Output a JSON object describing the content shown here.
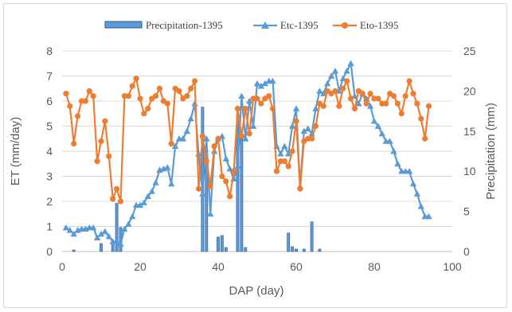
{
  "chart_data": {
    "type": "line",
    "title": "",
    "xlabel": "DAP (day)",
    "ylabel": "ET (mm/day)",
    "y2label": "Precipitation (mm)",
    "xlim": [
      0,
      100
    ],
    "ylim": [
      0,
      8
    ],
    "y2lim": [
      0,
      25
    ],
    "xticks": [
      "0",
      "20",
      "40",
      "60",
      "80",
      "100"
    ],
    "yticks": [
      "0",
      "1",
      "2",
      "3",
      "4",
      "5",
      "6",
      "7",
      "8"
    ],
    "y2ticks": [
      "0",
      "5",
      "10",
      "15",
      "20",
      "25"
    ],
    "grid": "horizontal",
    "legend_position": "top",
    "colors": {
      "precip_fill": "#5b9bd5",
      "precip_edge": "#2f5597",
      "etc": "#5b9bd5",
      "eto": "#ed7d31",
      "grid": "#d9d9d9",
      "axis": "#bfbfbf"
    },
    "series": [
      {
        "name": "Precipitation-1395",
        "kind": "bar",
        "axis": "right",
        "x": [
          3,
          10,
          13,
          14,
          15,
          36,
          37,
          40,
          41,
          42,
          45,
          46,
          47,
          58,
          59,
          60,
          62,
          64,
          66
        ],
        "values": [
          0.2,
          1.0,
          1.0,
          6.0,
          3.0,
          18.0,
          12.0,
          1.8,
          2.0,
          0.5,
          17.0,
          14.0,
          0.5,
          2.3,
          0.6,
          0.3,
          0.3,
          3.7,
          0.3
        ]
      },
      {
        "name": "Etc-1395",
        "kind": "line",
        "marker": "triangle",
        "axis": "left",
        "x": [
          1,
          2,
          3,
          4,
          5,
          6,
          7,
          8,
          9,
          10,
          11,
          12,
          13,
          14,
          15,
          16,
          17,
          18,
          19,
          20,
          21,
          22,
          23,
          24,
          25,
          26,
          27,
          28,
          29,
          30,
          31,
          32,
          33,
          34,
          35,
          36,
          37,
          38,
          39,
          40,
          41,
          42,
          43,
          44,
          45,
          46,
          47,
          48,
          49,
          50,
          51,
          52,
          53,
          54,
          55,
          56,
          57,
          58,
          59,
          60,
          61,
          62,
          63,
          64,
          65,
          66,
          67,
          68,
          69,
          70,
          71,
          72,
          73,
          74,
          75,
          76,
          77,
          78,
          79,
          80,
          81,
          82,
          83,
          84,
          85,
          86,
          87,
          88,
          89,
          90,
          91,
          92,
          93,
          94
        ],
        "values": [
          0.95,
          0.85,
          0.7,
          0.85,
          0.9,
          0.9,
          0.95,
          0.95,
          0.55,
          0.7,
          0.8,
          0.6,
          0.4,
          0.4,
          0.3,
          0.9,
          1.1,
          1.4,
          1.85,
          1.85,
          1.95,
          2.2,
          2.4,
          2.75,
          3.25,
          3.3,
          3.35,
          2.7,
          4.2,
          4.5,
          4.5,
          4.8,
          5.3,
          5.9,
          3.9,
          2.3,
          4.5,
          1.5,
          4.0,
          4.5,
          4.6,
          3.7,
          3.3,
          2.9,
          3.4,
          6.2,
          4.5,
          6.0,
          5.0,
          6.7,
          6.6,
          6.7,
          6.8,
          6.8,
          4.2,
          3.9,
          4.2,
          3.9,
          5.0,
          5.7,
          2.6,
          4.8,
          4.9,
          4.7,
          5.7,
          6.4,
          6.3,
          6.7,
          7.0,
          7.2,
          6.4,
          6.9,
          7.2,
          7.5,
          6.2,
          5.9,
          6.3,
          6.1,
          5.8,
          5.2,
          5.0,
          4.7,
          4.4,
          4.4,
          4.0,
          3.5,
          3.2,
          3.2,
          3.2,
          2.7,
          2.3,
          1.8,
          1.4,
          1.4
        ]
      },
      {
        "name": "Eto-1395",
        "kind": "line",
        "marker": "circle",
        "axis": "left",
        "x": [
          1,
          2,
          3,
          4,
          5,
          6,
          7,
          8,
          9,
          10,
          11,
          12,
          13,
          14,
          15,
          16,
          17,
          18,
          19,
          20,
          21,
          22,
          23,
          24,
          25,
          26,
          27,
          28,
          29,
          30,
          31,
          32,
          33,
          34,
          35,
          36,
          37,
          38,
          39,
          40,
          41,
          42,
          43,
          44,
          45,
          46,
          47,
          48,
          49,
          50,
          51,
          52,
          53,
          54,
          55,
          56,
          57,
          58,
          59,
          60,
          61,
          62,
          63,
          64,
          65,
          66,
          67,
          68,
          69,
          70,
          71,
          72,
          73,
          74,
          75,
          76,
          77,
          78,
          79,
          80,
          81,
          82,
          83,
          84,
          85,
          86,
          87,
          88,
          89,
          90,
          91,
          92,
          93,
          94
        ],
        "values": [
          6.3,
          5.8,
          4.3,
          5.4,
          6.0,
          6.0,
          6.4,
          6.2,
          3.6,
          4.4,
          5.2,
          3.8,
          2.1,
          2.5,
          2.0,
          6.2,
          6.2,
          6.6,
          6.9,
          6.1,
          5.5,
          5.7,
          6.1,
          6.2,
          6.5,
          6.0,
          5.9,
          4.3,
          6.5,
          6.4,
          6.1,
          6.2,
          6.5,
          6.8,
          2.5,
          4.6,
          3.6,
          2.6,
          4.2,
          4.5,
          3.0,
          2.8,
          2.2,
          3.2,
          5.7,
          4.6,
          5.7,
          4.7,
          6.1,
          6.1,
          5.9,
          6.1,
          6.2,
          5.7,
          3.2,
          3.6,
          3.6,
          3.4,
          4.0,
          5.2,
          2.5,
          4.4,
          4.5,
          4.5,
          5.0,
          5.9,
          5.8,
          6.4,
          6.3,
          6.4,
          5.8,
          6.5,
          6.8,
          6.1,
          5.7,
          6.4,
          6.3,
          5.9,
          6.3,
          6.1,
          6.1,
          5.9,
          5.9,
          6.3,
          6.2,
          5.9,
          5.5,
          6.2,
          6.8,
          6.3,
          5.9,
          5.3,
          4.5,
          5.8
        ]
      }
    ]
  }
}
